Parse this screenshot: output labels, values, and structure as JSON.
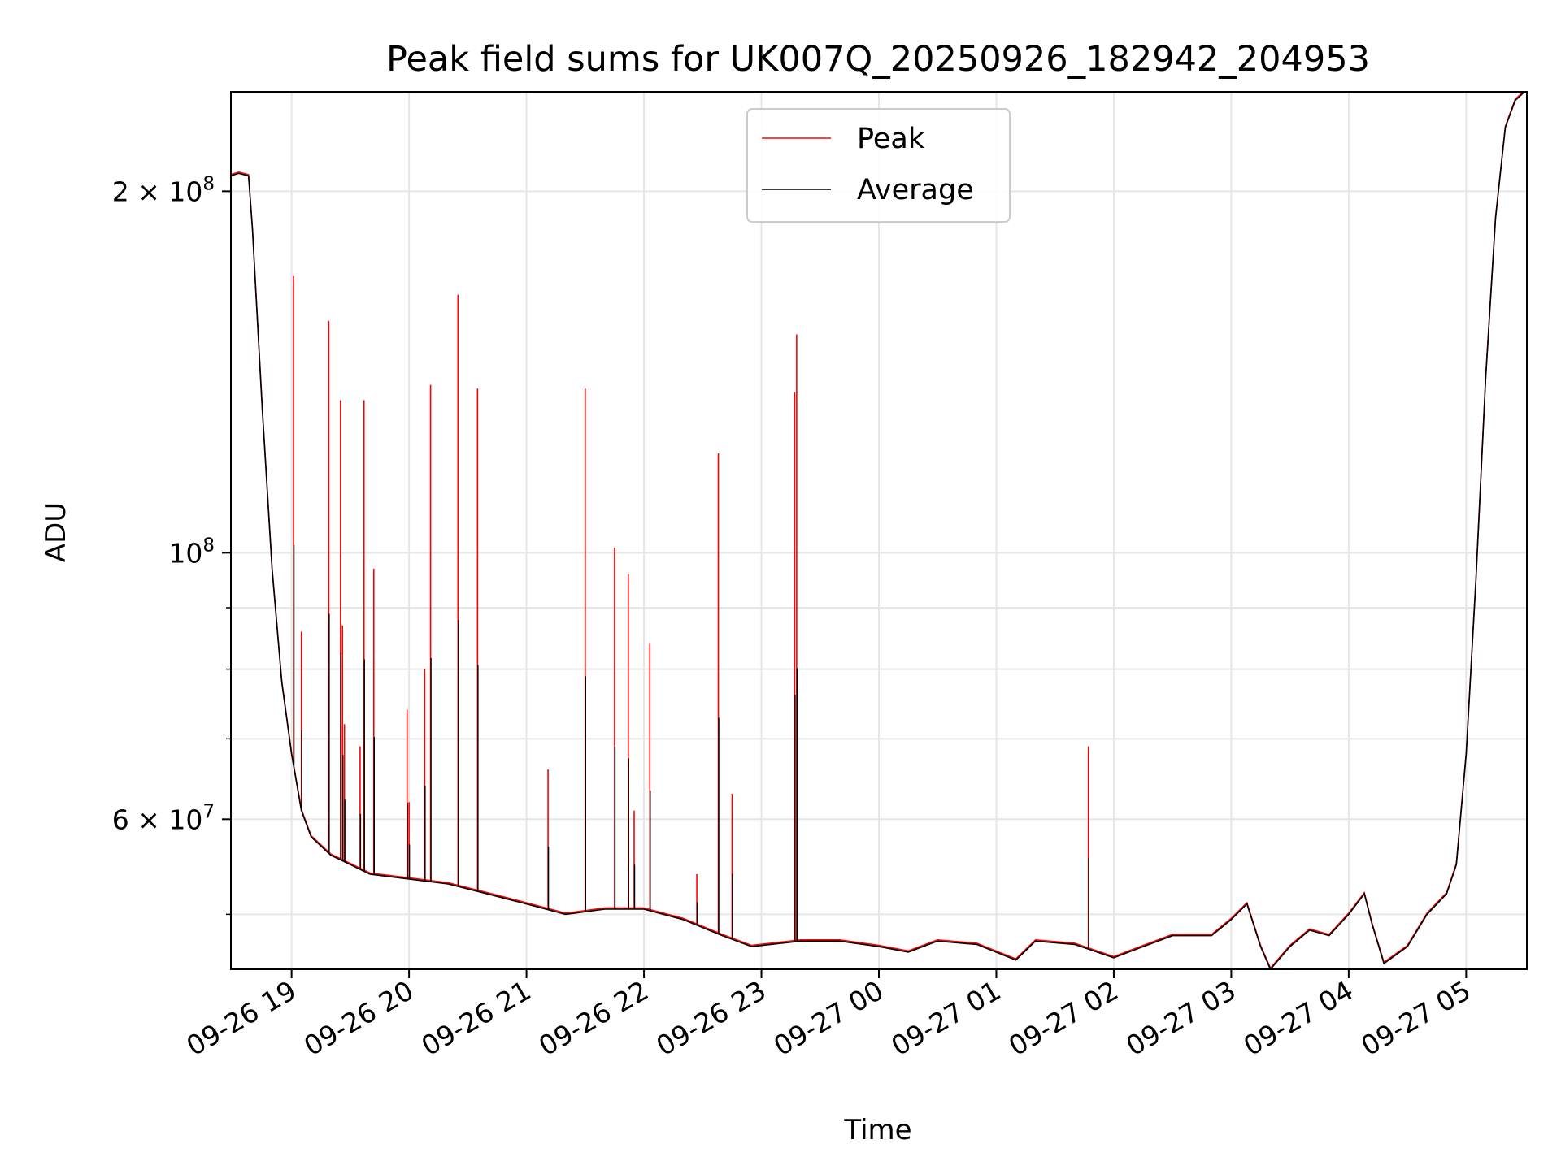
{
  "chart_data": {
    "type": "line",
    "title": "Peak field sums for UK007Q_20250926_182942_204953",
    "xlabel": "Time",
    "ylabel": "ADU",
    "yscale": "log",
    "xlim": [
      "2025-09-26 18:29",
      "2025-09-27 05:31"
    ],
    "ylim": [
      45000000,
      242000000
    ],
    "grid": true,
    "legend_location": "upper center",
    "x_ticks": [
      "2025-09-26 19:00",
      "2025-09-26 20:00",
      "2025-09-26 21:00",
      "2025-09-26 22:00",
      "2025-09-26 23:00",
      "2025-09-27 00:00",
      "2025-09-27 01:00",
      "2025-09-27 02:00",
      "2025-09-27 03:00",
      "2025-09-27 04:00",
      "2025-09-27 05:00"
    ],
    "x_tick_labels": [
      "09-26 19",
      "09-26 20",
      "09-26 21",
      "09-26 22",
      "09-26 23",
      "09-27 00",
      "09-27 01",
      "09-27 02",
      "09-27 03",
      "09-27 04",
      "09-27 05"
    ],
    "y_major_ticks": [
      200000000,
      100000000,
      60000000
    ],
    "y_major_tick_labels": [
      {
        "mantissa": "2",
        "times": "×",
        "base": "10",
        "exp": "8"
      },
      {
        "mantissa": "",
        "times": "",
        "base": "10",
        "exp": "8"
      },
      {
        "mantissa": "6",
        "times": "×",
        "base": "10",
        "exp": "7"
      }
    ],
    "y_minor_ticks": [
      50000000,
      70000000,
      80000000,
      90000000
    ],
    "colors": {
      "Peak": "#ff0000",
      "Average": "#000000"
    },
    "series": [
      {
        "name": "Average",
        "x": [
          "2025-09-26 18:29",
          "2025-09-26 18:33",
          "2025-09-26 18:38",
          "2025-09-26 18:40",
          "2025-09-26 18:45",
          "2025-09-26 18:50",
          "2025-09-26 18:55",
          "2025-09-26 19:00",
          "2025-09-26 19:05",
          "2025-09-26 19:10",
          "2025-09-26 19:20",
          "2025-09-26 19:30",
          "2025-09-26 19:40",
          "2025-09-26 20:00",
          "2025-09-26 20:20",
          "2025-09-26 20:40",
          "2025-09-26 21:00",
          "2025-09-26 21:20",
          "2025-09-26 21:40",
          "2025-09-26 22:00",
          "2025-09-26 22:20",
          "2025-09-26 22:40",
          "2025-09-26 22:55",
          "2025-09-26 23:20",
          "2025-09-26 23:40",
          "2025-09-27 00:00",
          "2025-09-27 00:15",
          "2025-09-27 00:30",
          "2025-09-27 00:50",
          "2025-09-27 01:10",
          "2025-09-27 01:20",
          "2025-09-27 01:40",
          "2025-09-27 02:00",
          "2025-09-27 02:15",
          "2025-09-27 02:30",
          "2025-09-27 02:50",
          "2025-09-27 03:00",
          "2025-09-27 03:08",
          "2025-09-27 03:15",
          "2025-09-27 03:20",
          "2025-09-27 03:30",
          "2025-09-27 03:40",
          "2025-09-27 03:50",
          "2025-09-27 04:00",
          "2025-09-27 04:08",
          "2025-09-27 04:12",
          "2025-09-27 04:18",
          "2025-09-27 04:30",
          "2025-09-27 04:40",
          "2025-09-27 04:50",
          "2025-09-27 04:55",
          "2025-09-27 05:00",
          "2025-09-27 05:05",
          "2025-09-27 05:10",
          "2025-09-27 05:15",
          "2025-09-27 05:20",
          "2025-09-27 05:25",
          "2025-09-27 05:31"
        ],
        "y": [
          206000000,
          207000000,
          206000000,
          186000000,
          132000000,
          97000000,
          78000000,
          68000000,
          61000000,
          58000000,
          56000000,
          55000000,
          54000000,
          53500000,
          53000000,
          52000000,
          51000000,
          50000000,
          50500000,
          50500000,
          49500000,
          48000000,
          47000000,
          47500000,
          47500000,
          47000000,
          46500000,
          47500000,
          47200000,
          45800000,
          47500000,
          47200000,
          46000000,
          47000000,
          48000000,
          48000000,
          49500000,
          51000000,
          47000000,
          45000000,
          47000000,
          48500000,
          48000000,
          50000000,
          52000000,
          49000000,
          45500000,
          47000000,
          50000000,
          52000000,
          55000000,
          68000000,
          95000000,
          140000000,
          190000000,
          226000000,
          238000000,
          243000000
        ]
      },
      {
        "name": "Peak",
        "spikes": [
          {
            "x": "2025-09-26 19:01",
            "y": 170000000
          },
          {
            "x": "2025-09-26 19:05",
            "y": 86000000
          },
          {
            "x": "2025-09-26 19:19",
            "y": 156000000
          },
          {
            "x": "2025-09-26 19:25",
            "y": 134000000
          },
          {
            "x": "2025-09-26 19:26",
            "y": 87000000
          },
          {
            "x": "2025-09-26 19:27",
            "y": 72000000
          },
          {
            "x": "2025-09-26 19:35",
            "y": 69000000
          },
          {
            "x": "2025-09-26 19:37",
            "y": 134000000
          },
          {
            "x": "2025-09-26 19:42",
            "y": 97000000
          },
          {
            "x": "2025-09-26 19:59",
            "y": 74000000
          },
          {
            "x": "2025-09-26 20:00",
            "y": 62000000
          },
          {
            "x": "2025-09-26 20:08",
            "y": 80000000
          },
          {
            "x": "2025-09-26 20:11",
            "y": 138000000
          },
          {
            "x": "2025-09-26 20:25",
            "y": 164000000
          },
          {
            "x": "2025-09-26 20:35",
            "y": 137000000
          },
          {
            "x": "2025-09-26 21:11",
            "y": 66000000
          },
          {
            "x": "2025-09-26 21:30",
            "y": 137000000
          },
          {
            "x": "2025-09-26 21:45",
            "y": 101000000
          },
          {
            "x": "2025-09-26 21:52",
            "y": 96000000
          },
          {
            "x": "2025-09-26 21:55",
            "y": 61000000
          },
          {
            "x": "2025-09-26 22:03",
            "y": 84000000
          },
          {
            "x": "2025-09-26 22:27",
            "y": 54000000
          },
          {
            "x": "2025-09-26 22:38",
            "y": 121000000
          },
          {
            "x": "2025-09-26 22:45",
            "y": 63000000
          },
          {
            "x": "2025-09-26 23:17",
            "y": 136000000
          },
          {
            "x": "2025-09-26 23:18",
            "y": 152000000
          },
          {
            "x": "2025-09-27 01:47",
            "y": 69000000
          }
        ]
      }
    ]
  }
}
